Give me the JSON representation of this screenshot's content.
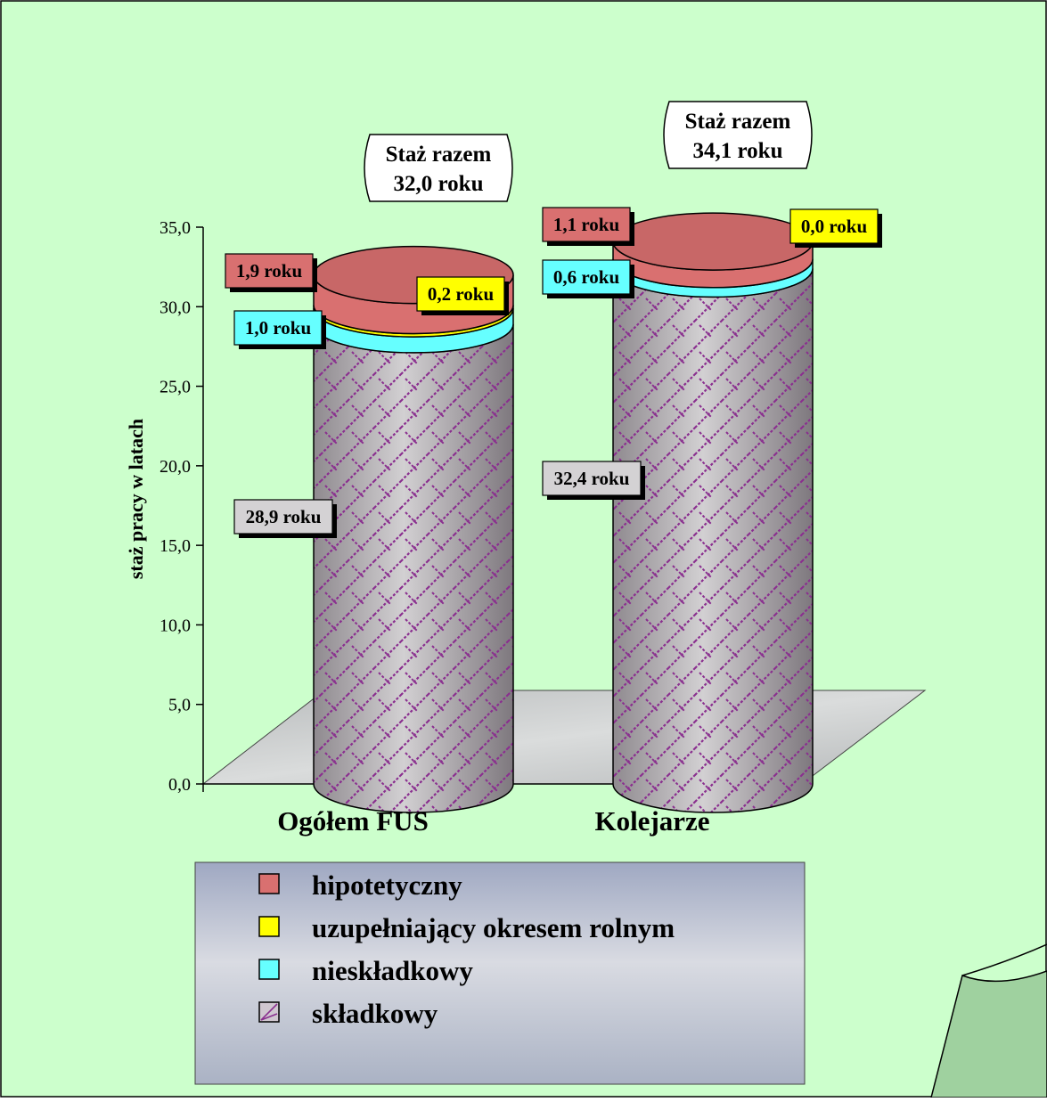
{
  "chart_data": {
    "type": "bar",
    "stacked": true,
    "style": "3d-cylinder",
    "categories": [
      "Ogółem FUS",
      "Kolejarze"
    ],
    "ylabel": "staż pracy w latach",
    "xlabel": "",
    "ylim": [
      0,
      35
    ],
    "yticks": [
      "0,0",
      "5,0",
      "10,0",
      "15,0",
      "20,0",
      "25,0",
      "30,0",
      "35,0"
    ],
    "series": [
      {
        "name": "składkowy",
        "values": [
          28.9,
          32.4
        ],
        "labels": [
          "28,9 roku",
          "32,4 roku"
        ],
        "color": "#a89aa6"
      },
      {
        "name": "nieskładkowy",
        "values": [
          1.0,
          0.6
        ],
        "labels": [
          "1,0 roku",
          "0,6 roku"
        ],
        "color": "#66ffff"
      },
      {
        "name": "uzupełniający okresem rolnym",
        "values": [
          0.2,
          0.0
        ],
        "labels": [
          "0,2 roku",
          "0,0 roku"
        ],
        "color": "#ffff00"
      },
      {
        "name": "hipotetyczny",
        "values": [
          1.9,
          1.1
        ],
        "labels": [
          "1,9 roku",
          "1,1 roku"
        ],
        "color": "#d97070"
      }
    ],
    "totals": [
      {
        "line1": "Staż razem",
        "line2": "32,0 roku"
      },
      {
        "line1": "Staż razem",
        "line2": "34,1 roku"
      }
    ],
    "legend": {
      "position": "bottom",
      "order": [
        "hipotetyczny",
        "uzupełniający okresem rolnym",
        "nieskładkowy",
        "składkowy"
      ]
    },
    "grid": false,
    "colors": {
      "page_background": "#ccffcc",
      "floor": "#c7c9c9",
      "legend_background": "#b7bdcb"
    }
  }
}
